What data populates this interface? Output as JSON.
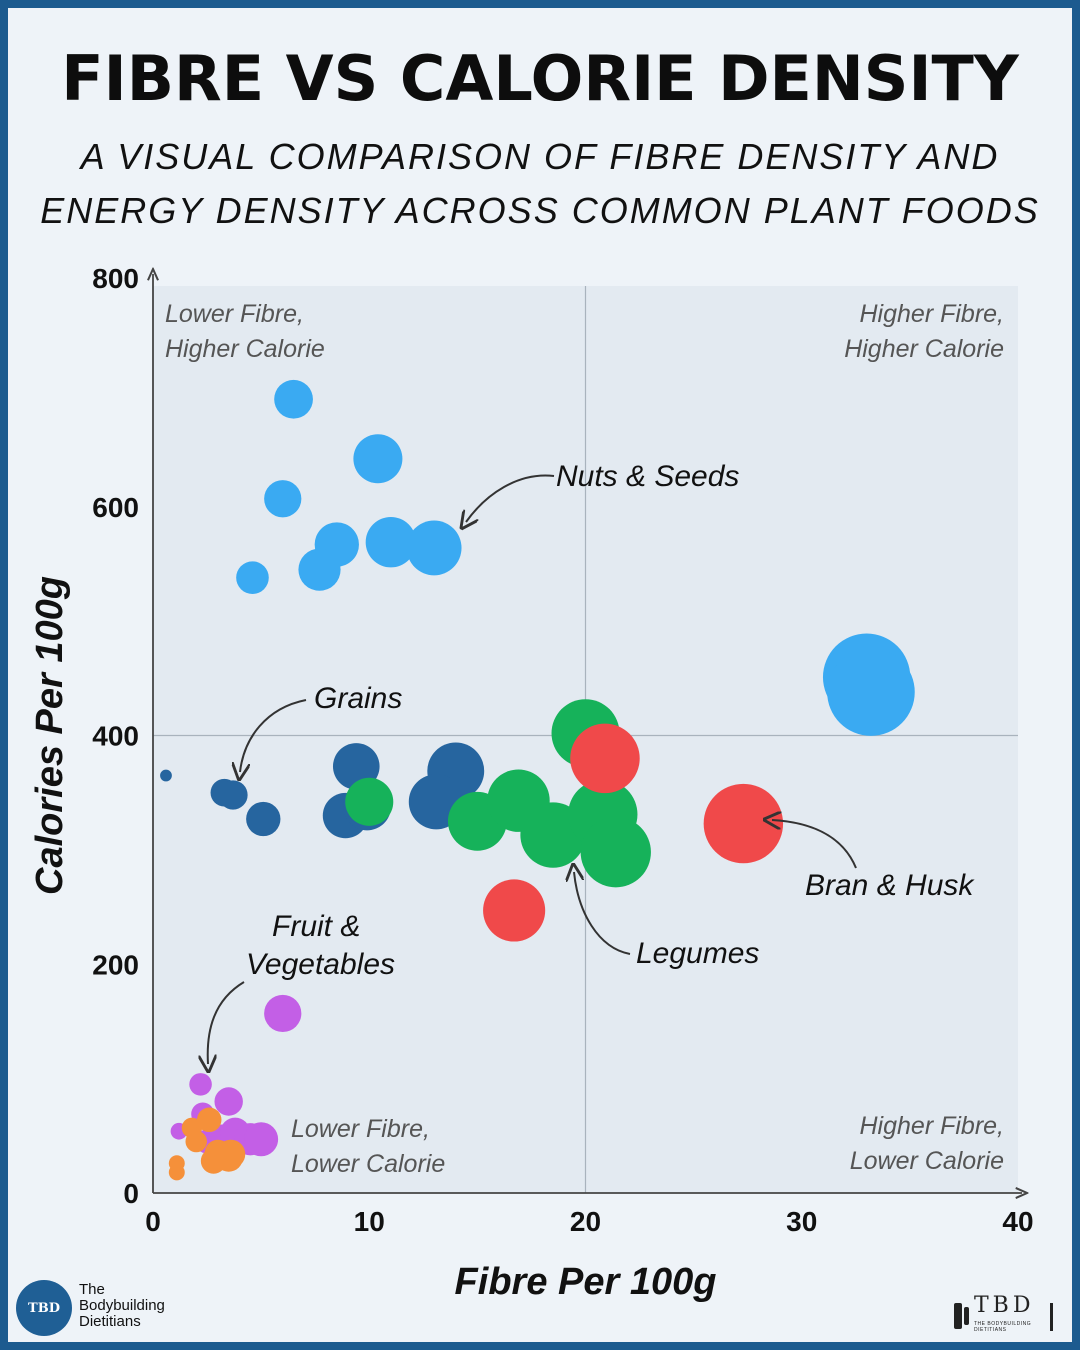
{
  "header": {
    "title": "FIBRE VS CALORIE DENSITY",
    "subtitle_line1": "A VISUAL COMPARISON OF FIBRE DENSITY AND",
    "subtitle_line2": "ENERGY DENSITY ACROSS COMMON PLANT FOODS"
  },
  "colors": {
    "nuts_seeds": "#3aaaf2",
    "grains": "#26659f",
    "legumes": "#16b25a",
    "bran_husk": "#f0494a",
    "fruit_veg_purple": "#c35fe6",
    "fruit_veg_orange": "#f5903a",
    "frame": "#1c5b8f",
    "background": "#eef3f8"
  },
  "chart_data": {
    "type": "scatter",
    "title": "FIBRE VS CALORIE DENSITY",
    "xlabel": "Fibre Per 100g",
    "ylabel": "Calories Per 100g",
    "xlim": [
      0,
      40
    ],
    "ylim": [
      0,
      800
    ],
    "xticks": [
      0,
      10,
      20,
      30,
      40
    ],
    "yticks": [
      0,
      200,
      400,
      600,
      800
    ],
    "quadrant_dividers": {
      "x": 20,
      "y": 400
    },
    "quadrant_labels": [
      {
        "line1": "Lower Fibre,",
        "line2": "Higher Calorie",
        "position": "top-left"
      },
      {
        "line1": "Higher Fibre,",
        "line2": "Higher Calorie",
        "position": "top-right"
      },
      {
        "line1": "Lower Fibre,",
        "line2": "Lower Calorie",
        "position": "bottom-left"
      },
      {
        "line1": "Higher Fibre,",
        "line2": "Lower Calorie",
        "position": "bottom-right"
      }
    ],
    "group_labels": [
      {
        "text": "Nuts & Seeds",
        "series": "Nuts & Seeds"
      },
      {
        "text": "Grains",
        "series": "Grains"
      },
      {
        "text": "Legumes",
        "series": "Legumes"
      },
      {
        "text": "Bran & Husk",
        "series": "Bran & Husk"
      },
      {
        "text_line1": "Fruit &",
        "text_line2": "Vegetables",
        "series": "Fruit & Vegetables"
      }
    ],
    "series": [
      {
        "name": "Nuts & Seeds",
        "color": "#3aaaf2",
        "points": [
          {
            "x": 6.5,
            "y": 694,
            "size": 6.5
          },
          {
            "x": 10.4,
            "y": 642,
            "size": 10.4
          },
          {
            "x": 6.0,
            "y": 607,
            "size": 6.0
          },
          {
            "x": 8.5,
            "y": 567,
            "size": 8.5
          },
          {
            "x": 11.0,
            "y": 569,
            "size": 11.0
          },
          {
            "x": 13.0,
            "y": 564,
            "size": 13.0
          },
          {
            "x": 7.7,
            "y": 545,
            "size": 7.7
          },
          {
            "x": 4.6,
            "y": 538,
            "size": 4.6
          },
          {
            "x": 33.0,
            "y": 451,
            "size": 33.0
          },
          {
            "x": 33.2,
            "y": 438,
            "size": 33.2
          }
        ]
      },
      {
        "name": "Grains",
        "color": "#26659f",
        "points": [
          {
            "x": 0.6,
            "y": 365,
            "size": 0.6
          },
          {
            "x": 3.3,
            "y": 350,
            "size": 3.3
          },
          {
            "x": 3.7,
            "y": 348,
            "size": 3.7
          },
          {
            "x": 5.1,
            "y": 327,
            "size": 5.1
          },
          {
            "x": 9.4,
            "y": 373,
            "size": 9.4
          },
          {
            "x": 8.9,
            "y": 330,
            "size": 8.9
          },
          {
            "x": 9.9,
            "y": 338,
            "size": 9.9
          },
          {
            "x": 14.0,
            "y": 369,
            "size": 14.0
          },
          {
            "x": 13.1,
            "y": 342,
            "size": 13.1
          }
        ]
      },
      {
        "name": "Legumes",
        "color": "#16b25a",
        "points": [
          {
            "x": 10.0,
            "y": 342,
            "size": 10.0
          },
          {
            "x": 15.0,
            "y": 325,
            "size": 15.0
          },
          {
            "x": 16.9,
            "y": 343,
            "size": 16.9
          },
          {
            "x": 18.5,
            "y": 313,
            "size": 18.5
          },
          {
            "x": 20.0,
            "y": 402,
            "size": 20.0
          },
          {
            "x": 20.8,
            "y": 331,
            "size": 20.8
          },
          {
            "x": 21.4,
            "y": 298,
            "size": 21.4
          }
        ]
      },
      {
        "name": "Bran & Husk",
        "color": "#f0494a",
        "points": [
          {
            "x": 20.9,
            "y": 380,
            "size": 20.9
          },
          {
            "x": 27.3,
            "y": 323,
            "size": 27.3
          },
          {
            "x": 16.7,
            "y": 247,
            "size": 16.7
          }
        ]
      },
      {
        "name": "Fruit & Vegetables",
        "color": "#c35fe6",
        "points": [
          {
            "x": 6.0,
            "y": 157,
            "size": 6.0
          },
          {
            "x": 2.2,
            "y": 95,
            "size": 2.2
          },
          {
            "x": 3.5,
            "y": 80,
            "size": 3.5
          },
          {
            "x": 2.3,
            "y": 69,
            "size": 2.3
          },
          {
            "x": 1.2,
            "y": 54,
            "size": 1.2
          },
          {
            "x": 2.5,
            "y": 45,
            "size": 2.5
          },
          {
            "x": 3.2,
            "y": 48,
            "size": 3.2
          },
          {
            "x": 3.8,
            "y": 53,
            "size": 3.8
          },
          {
            "x": 4.5,
            "y": 47,
            "size": 4.5
          },
          {
            "x": 5.0,
            "y": 47,
            "size": 5.0
          }
        ]
      },
      {
        "name": "Fruit & Vegetables (orange)",
        "color": "#f5903a",
        "points": [
          {
            "x": 1.1,
            "y": 26,
            "size": 1.1
          },
          {
            "x": 1.1,
            "y": 18,
            "size": 1.1
          },
          {
            "x": 1.8,
            "y": 57,
            "size": 1.8
          },
          {
            "x": 2.0,
            "y": 45,
            "size": 2.0
          },
          {
            "x": 2.6,
            "y": 64,
            "size": 2.6
          },
          {
            "x": 2.8,
            "y": 28,
            "size": 2.8
          },
          {
            "x": 3.0,
            "y": 35,
            "size": 3.0
          },
          {
            "x": 3.5,
            "y": 31,
            "size": 3.5
          },
          {
            "x": 3.6,
            "y": 34,
            "size": 3.6
          }
        ]
      }
    ]
  },
  "branding": {
    "left_logo_badge": "TBD",
    "left_logo_line1": "The",
    "left_logo_line2": "Bodybuilding",
    "left_logo_line3": "Dietitians",
    "right_logo_text": "TBD",
    "right_logo_small": "THE BODYBUILDING DIETITIANS"
  }
}
